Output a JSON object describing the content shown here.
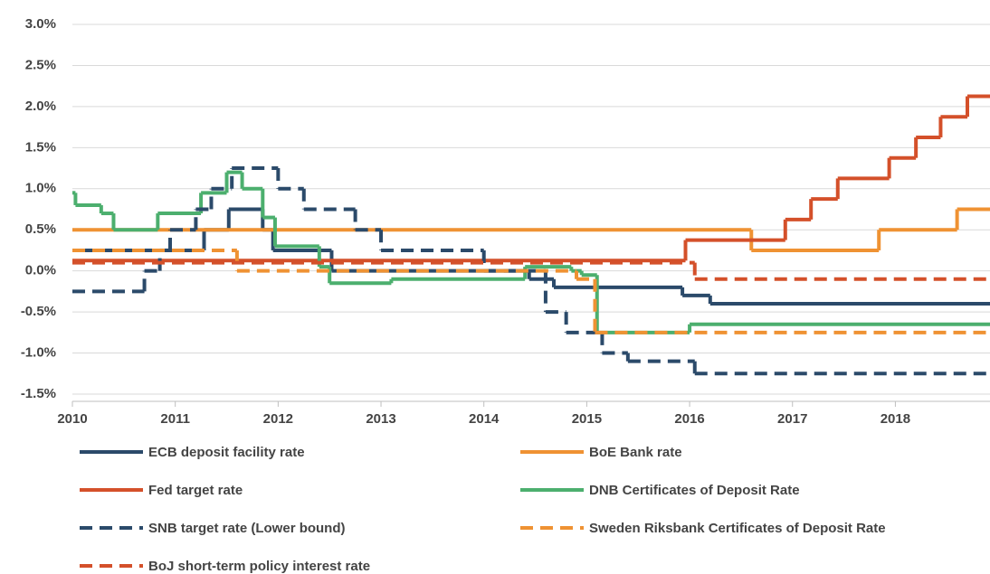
{
  "chart_data": {
    "type": "step",
    "xlim": [
      2010,
      2018.92
    ],
    "ylim": [
      -1.5,
      3.0
    ],
    "xticks": [
      2010,
      2011,
      2012,
      2013,
      2014,
      2015,
      2016,
      2017,
      2018
    ],
    "yticks": [
      {
        "value": -1.5,
        "label": "-1.5%"
      },
      {
        "value": -1.0,
        "label": "-1.0%"
      },
      {
        "value": -0.5,
        "label": "-0.5%"
      },
      {
        "value": 0,
        "label": "0.0%"
      },
      {
        "value": 0.5,
        "label": "0.5%"
      },
      {
        "value": 1.0,
        "label": "1.0%"
      },
      {
        "value": 1.5,
        "label": "1.5%"
      },
      {
        "value": 2.0,
        "label": "2.0%"
      },
      {
        "value": 2.5,
        "label": "2.5%"
      },
      {
        "value": 3.0,
        "label": "3.0%"
      }
    ],
    "grid": true,
    "series": [
      {
        "name": "ECB deposit facility rate",
        "color": "#2b4a6a",
        "dashed": false,
        "x": [
          2010,
          2011.28,
          2011.52,
          2011.85,
          2011.95,
          2012.52,
          2014.44,
          2014.68,
          2015.93,
          2016.2,
          2018.92
        ],
        "values": [
          0.25,
          0.5,
          0.75,
          0.5,
          0.25,
          0,
          -0.1,
          -0.2,
          -0.3,
          -0.4,
          -0.4
        ]
      },
      {
        "name": "BoE Bank rate",
        "color": "#ef9233",
        "dashed": false,
        "x": [
          2010,
          2016.6,
          2017.84,
          2018.6,
          2018.92
        ],
        "values": [
          0.5,
          0.25,
          0.5,
          0.75,
          0.75
        ]
      },
      {
        "name": "Fed target rate",
        "color": "#d4502a",
        "dashed": false,
        "x": [
          2010,
          2015.96,
          2016.93,
          2017.18,
          2017.44,
          2017.94,
          2018.2,
          2018.44,
          2018.7,
          2018.92
        ],
        "values": [
          0.125,
          0.375,
          0.625,
          0.875,
          1.125,
          1.375,
          1.625,
          1.875,
          2.125,
          2.125
        ]
      },
      {
        "name": "DNB Certificates of Deposit Rate",
        "color": "#4caf6e",
        "dashed": false,
        "x": [
          2010,
          2010.03,
          2010.28,
          2010.4,
          2010.83,
          2011.25,
          2011.5,
          2011.65,
          2011.85,
          2011.97,
          2012.4,
          2012.5,
          2013.1,
          2014.4,
          2014.85,
          2014.95,
          2015.1,
          2016.0,
          2018.92
        ],
        "values": [
          0.95,
          0.8,
          0.7,
          0.5,
          0.7,
          0.95,
          1.2,
          1.0,
          0.65,
          0.3,
          0.05,
          -0.15,
          -0.1,
          0.05,
          0,
          -0.05,
          -0.75,
          -0.65,
          -0.65
        ]
      },
      {
        "name": "SNB target rate (Lower bound)",
        "color": "#2b4a6a",
        "dashed": true,
        "x": [
          2010,
          2010.7,
          2010.85,
          2010.95,
          2011.2,
          2011.35,
          2011.55,
          2012.0,
          2012.25,
          2012.75,
          2013.0,
          2014.0,
          2014.6,
          2014.8,
          2015.15,
          2015.4,
          2016.05,
          2018.92
        ],
        "values": [
          -0.25,
          0,
          0.25,
          0.5,
          0.75,
          1.0,
          1.25,
          1.0,
          0.75,
          0.5,
          0.25,
          0,
          -0.5,
          -0.75,
          -1.0,
          -1.1,
          -1.25,
          -1.25
        ]
      },
      {
        "name": "Sweden Riksbank Certificates of Deposit Rate",
        "color": "#ef9233",
        "dashed": true,
        "x": [
          2010,
          2011.6,
          2014.9,
          2015.08,
          2018.92
        ],
        "values": [
          0.25,
          0,
          -0.1,
          -0.75,
          -0.75
        ]
      },
      {
        "name": "BoJ  short-term policy interest rate",
        "color": "#d4502a",
        "dashed": true,
        "x": [
          2010,
          2016.05,
          2018.92
        ],
        "values": [
          0.1,
          -0.1,
          -0.1
        ]
      }
    ]
  }
}
